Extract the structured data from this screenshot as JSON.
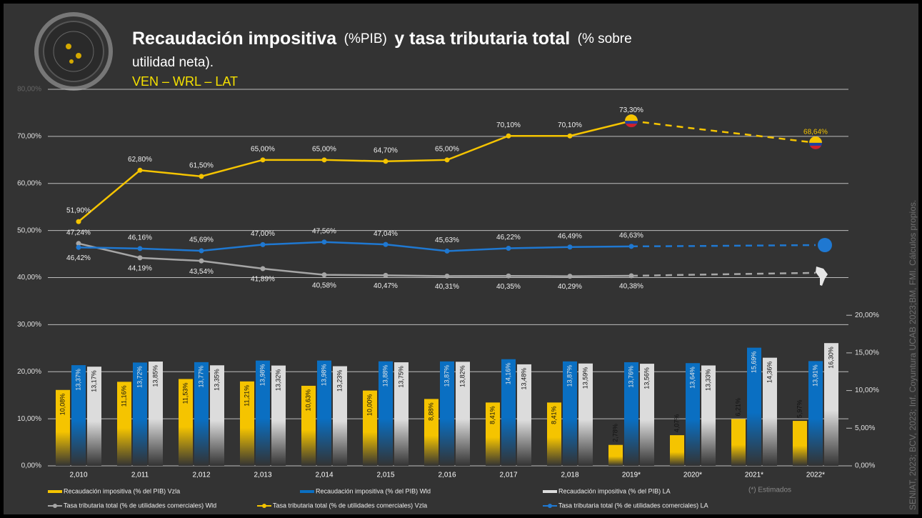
{
  "chart_data": {
    "type": "combo",
    "title": [
      "Recaudación impositiva",
      "(%PIB)",
      "y tasa tributaria total",
      "(% sobre",
      "utilidad neta)."
    ],
    "subtitle": "VEN – WRL – LAT",
    "note": "(*) Estimados",
    "source": "SENIAT, 2023; BCV, 2023; Inf. Coyuntura UCAB 2023;BM, FMI. Cálculos propios.",
    "categories": [
      "2,010",
      "2,011",
      "2,012",
      "2,013",
      "2,014",
      "2,015",
      "2,016",
      "2,017",
      "2,018",
      "2019*",
      "2020*",
      "2021*",
      "2022*"
    ],
    "ylim": [
      0,
      80
    ],
    "yticks": [
      {
        "value": 0,
        "label": "0,00%"
      },
      {
        "value": 10,
        "label": "10,00%"
      },
      {
        "value": 20,
        "label": "20,00%"
      },
      {
        "value": 30,
        "label": "30,00%"
      },
      {
        "value": 40,
        "label": "40,00%"
      },
      {
        "value": 50,
        "label": "50,00%"
      },
      {
        "value": 60,
        "label": "60,00%"
      },
      {
        "value": 70,
        "label": "70,00%"
      },
      {
        "value": 80,
        "label": "80,00%"
      }
    ],
    "y2lim": [
      0,
      50
    ],
    "y2ticks": [
      {
        "value": 0,
        "label": "0,00%"
      },
      {
        "value": 5,
        "label": "5,00%"
      },
      {
        "value": 10,
        "label": "10,00%"
      },
      {
        "value": 15,
        "label": "15,00%"
      },
      {
        "value": 20,
        "label": "20,00%"
      }
    ],
    "grid": true,
    "dash_from": 9,
    "series": [
      {
        "name": "Recaudación impositiva (% del PIB) Vzla",
        "type": "bar",
        "axis": "y2",
        "color": "#f5c400",
        "values": [
          10.08,
          11.16,
          11.53,
          11.21,
          10.63,
          10.0,
          8.88,
          8.41,
          8.41,
          2.78,
          4.07,
          6.21,
          5.97
        ],
        "value_labels": [
          "10,08%",
          "11,16%",
          "11,53%",
          "11,21%",
          "10,63%",
          "10,00%",
          "8,88%",
          "8,41%",
          "8,41%",
          "2,78%",
          "4,07%",
          "6,21%",
          "5,97%"
        ]
      },
      {
        "name": "Recaudación impositiva (% del PIB) Wld",
        "type": "bar",
        "axis": "y2",
        "color": "#0a6fc2",
        "values": [
          13.37,
          13.72,
          13.77,
          13.98,
          13.98,
          13.88,
          13.87,
          14.16,
          13.87,
          13.76,
          13.64,
          15.69,
          13.91
        ],
        "value_labels": [
          "13,37%",
          "13,72%",
          "13,77%",
          "13,98%",
          "13,98%",
          "13,88%",
          "13,87%",
          "14,16%",
          "13,87%",
          "13,76%",
          "13,64%",
          "15,69%",
          "13,91%"
        ]
      },
      {
        "name": "Recaudación impositiva (% del PIB) LA",
        "type": "bar",
        "axis": "y2",
        "color": "#dcdcdc",
        "values": [
          13.17,
          13.85,
          13.35,
          13.32,
          13.23,
          13.75,
          13.82,
          13.48,
          13.59,
          13.56,
          13.33,
          14.36,
          16.3
        ],
        "value_labels": [
          "13,17%",
          "13,85%",
          "13,35%",
          "13,32%",
          "13,23%",
          "13,75%",
          "13,82%",
          "13,48%",
          "13,59%",
          "13,56%",
          "13,33%",
          "14,36%",
          "16,30%"
        ]
      },
      {
        "name": "Tasa tributaria total (% de utilidades comerciales) Wld",
        "type": "line",
        "color": "#a6a6a6",
        "values": [
          47.24,
          44.19,
          43.54,
          41.89,
          40.58,
          40.47,
          40.31,
          40.35,
          40.29,
          40.38,
          40.6,
          40.8,
          41.0
        ],
        "value_labels": [
          "47,24%",
          "44,19%",
          "43,54%",
          "41,89%",
          "40,58%",
          "40,47%",
          "40,31%",
          "40,35%",
          "40,29%",
          "40,38%",
          null,
          null,
          null
        ]
      },
      {
        "name": "Tasa tributaria total (% de utilidades comerciales) Vzla",
        "type": "line",
        "color": "#f5c400",
        "values": [
          51.9,
          62.8,
          61.5,
          65.0,
          65.0,
          64.7,
          65.0,
          70.1,
          70.1,
          73.3,
          71.7,
          70.2,
          68.64
        ],
        "value_labels": [
          "51,90%",
          "62,80%",
          "61,50%",
          "65,00%",
          "65,00%",
          "64,70%",
          "65,00%",
          "70,10%",
          "70,10%",
          "73,30%",
          null,
          null,
          "68,64%"
        ]
      },
      {
        "name": "Tasa tributaria total (% de utilidades comerciales) LA",
        "type": "line",
        "color": "#1f78d1",
        "values": [
          46.42,
          46.16,
          45.69,
          47.0,
          47.56,
          47.04,
          45.63,
          46.22,
          46.49,
          46.63,
          46.7,
          46.8,
          46.9
        ],
        "value_labels": [
          "46,42%",
          "46,16%",
          "45,69%",
          "47,00%",
          "47,56%",
          "47,04%",
          "45,63%",
          "46,22%",
          "46,49%",
          "46,63%",
          null,
          null,
          null
        ]
      }
    ]
  }
}
